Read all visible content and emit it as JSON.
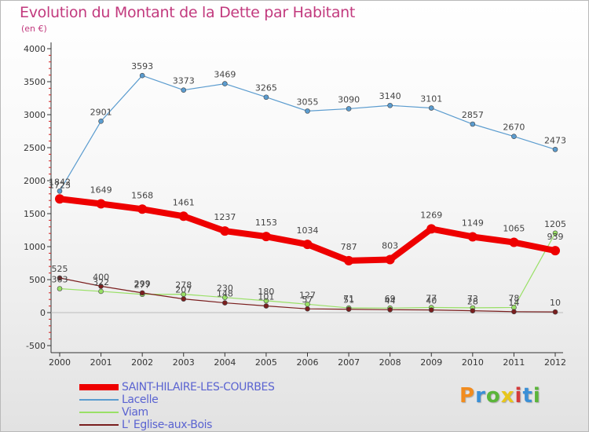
{
  "header": {
    "title": "Evolution du Montant de la Dette par Habitant",
    "subtitle": "(en €)"
  },
  "brand": {
    "logo_text": "Proxiti",
    "letter_colors": [
      "#f28c1e",
      "#3a8fd6",
      "#5bb53a",
      "#e8c61c",
      "#d43a3a",
      "#3a8fd6",
      "#5bb53a"
    ]
  },
  "chart_data": {
    "type": "line",
    "x": [
      2000,
      2001,
      2002,
      2003,
      2004,
      2005,
      2006,
      2007,
      2008,
      2009,
      2010,
      2011,
      2012
    ],
    "ylim": [
      -500,
      4000
    ],
    "yticks": [
      -500,
      0,
      500,
      1000,
      1500,
      2000,
      2500,
      3000,
      3500,
      4000
    ],
    "grid": false,
    "legend_position": "bottom",
    "series": [
      {
        "name": "SAINT-HILAIRE-LES-COURBES",
        "color": "#ee0000",
        "highlight": true,
        "values": [
          1723,
          1649,
          1568,
          1461,
          1237,
          1153,
          1034,
          787,
          803,
          1269,
          1149,
          1065,
          939
        ]
      },
      {
        "name": "Lacelle",
        "color": "#5b9ccf",
        "highlight": false,
        "values": [
          1842,
          2901,
          3593,
          3373,
          3469,
          3265,
          3055,
          3090,
          3140,
          3101,
          2857,
          2670,
          2473
        ]
      },
      {
        "name": "Viam",
        "color": "#99e066",
        "highlight": false,
        "values": [
          363,
          322,
          277,
          278,
          230,
          180,
          127,
          71,
          69,
          77,
          73,
          78,
          1205
        ]
      },
      {
        "name": "L' Eglise-aux-Bois",
        "color": "#7a1e1e",
        "highlight": false,
        "values": [
          525,
          400,
          299,
          207,
          148,
          101,
          57,
          51,
          44,
          40,
          28,
          14,
          10
        ]
      }
    ]
  }
}
